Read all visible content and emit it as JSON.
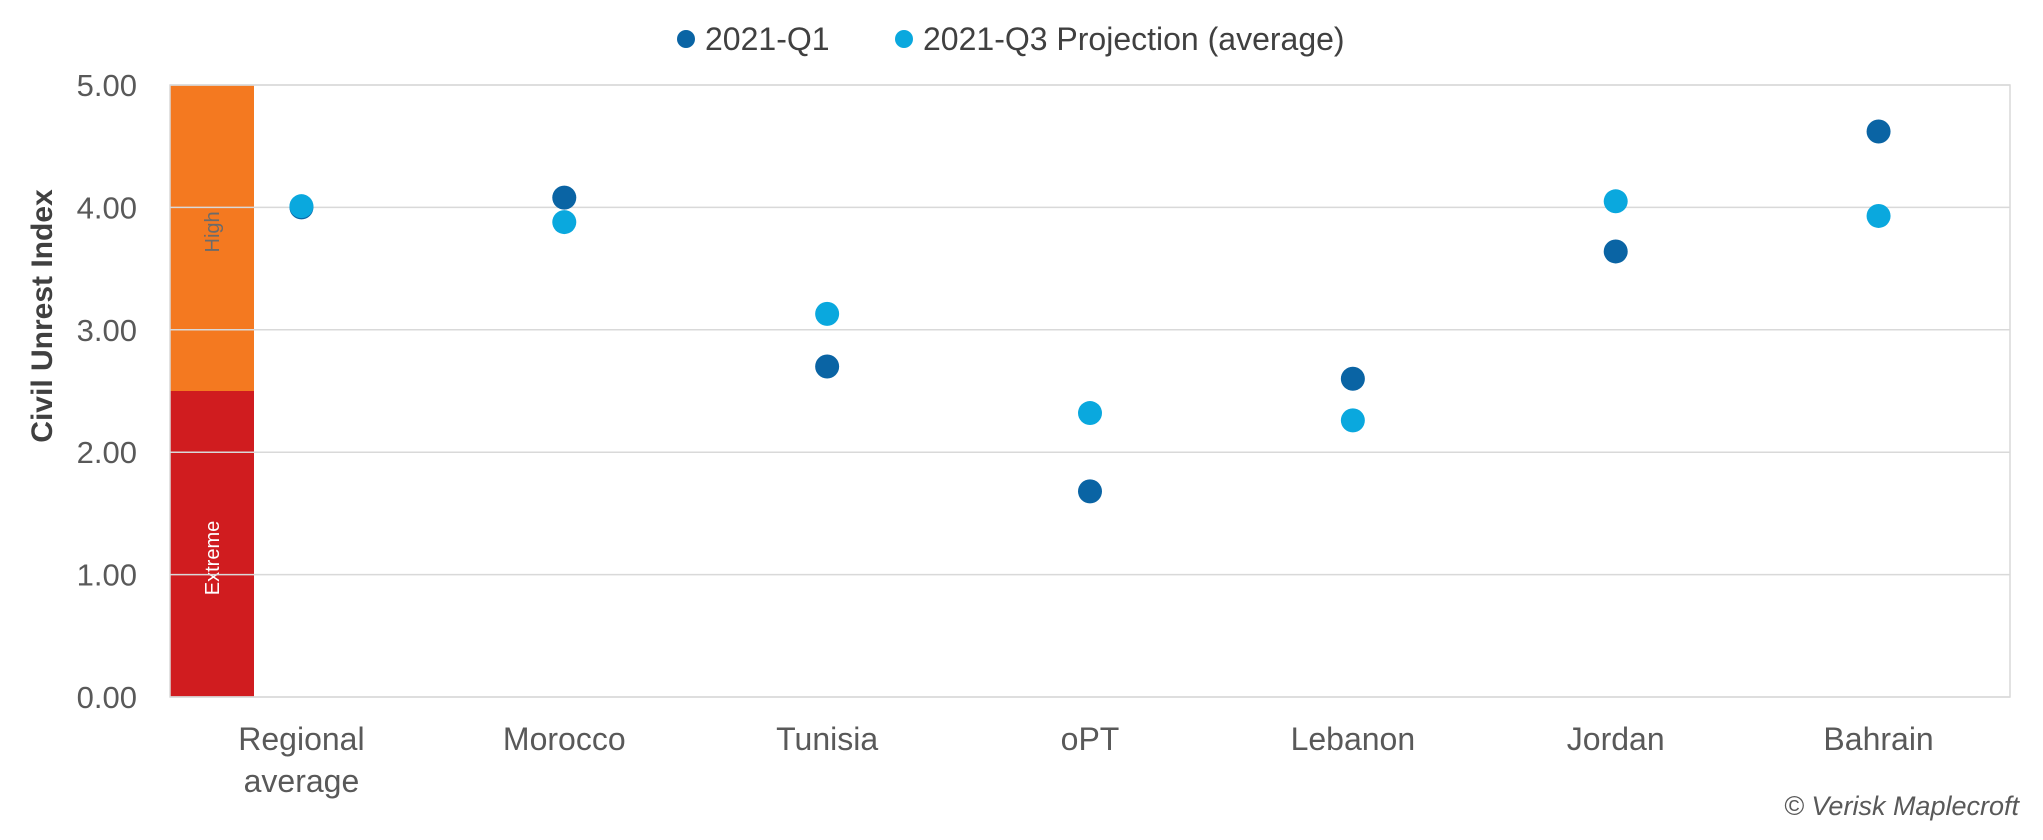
{
  "chart_data": {
    "type": "scatter",
    "ylabel": "Civil Unrest  Index",
    "ylim": [
      0,
      5
    ],
    "yticks": [
      "0.00",
      "1.00",
      "2.00",
      "3.00",
      "4.00",
      "5.00"
    ],
    "grid": true,
    "legend_position": "top",
    "categories": [
      [
        "Regional",
        "average"
      ],
      [
        "Morocco"
      ],
      [
        "Tunisia"
      ],
      [
        "oPT"
      ],
      [
        "Lebanon"
      ],
      [
        "Jordan"
      ],
      [
        "Bahrain"
      ]
    ],
    "series": [
      {
        "name": "2021-Q1",
        "color": "#0a64a4",
        "values": [
          4.0,
          4.08,
          2.7,
          1.68,
          2.6,
          3.64,
          4.62
        ]
      },
      {
        "name": "2021-Q3 Projection (average)",
        "color": "#0aa8de",
        "values": [
          4.01,
          3.88,
          3.13,
          2.32,
          2.26,
          4.05,
          3.93
        ]
      }
    ],
    "bands": [
      {
        "label": "Extreme",
        "from": 0,
        "to": 2.5,
        "color": "#d01c1f",
        "text_color": "#ffffff"
      },
      {
        "label": "High",
        "from": 2.5,
        "to": 5,
        "color": "#f47920",
        "text_color": "#6b6b6b"
      }
    ]
  },
  "copyright": "© Verisk Maplecroft"
}
